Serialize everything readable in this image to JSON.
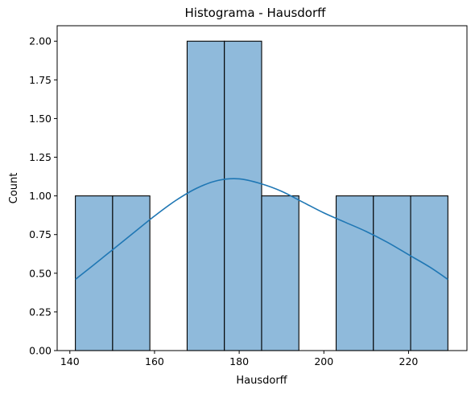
{
  "chart_data": {
    "type": "bar",
    "title": "Histograma - Hausdorff",
    "xlabel": "Hausdorff",
    "ylabel": "Count",
    "xlim": [
      137.0,
      233.8
    ],
    "ylim": [
      0,
      2.1
    ],
    "x_ticks": [
      140,
      160,
      180,
      200,
      220
    ],
    "y_ticks": [
      0.0,
      0.25,
      0.5,
      0.75,
      1.0,
      1.25,
      1.5,
      1.75,
      2.0
    ],
    "y_tick_labels": [
      "0.00",
      "0.25",
      "0.50",
      "0.75",
      "1.00",
      "1.25",
      "1.50",
      "1.75",
      "2.00"
    ],
    "bins": [
      {
        "x0": 141.3,
        "x1": 150.1,
        "count": 1
      },
      {
        "x0": 150.1,
        "x1": 158.9,
        "count": 1
      },
      {
        "x0": 158.9,
        "x1": 167.7,
        "count": 0
      },
      {
        "x0": 167.7,
        "x1": 176.5,
        "count": 2
      },
      {
        "x0": 176.5,
        "x1": 185.3,
        "count": 2
      },
      {
        "x0": 185.3,
        "x1": 194.1,
        "count": 1
      },
      {
        "x0": 194.1,
        "x1": 202.9,
        "count": 0
      },
      {
        "x0": 202.9,
        "x1": 211.7,
        "count": 1
      },
      {
        "x0": 211.7,
        "x1": 220.5,
        "count": 1
      },
      {
        "x0": 220.5,
        "x1": 229.3,
        "count": 1
      }
    ],
    "kde": {
      "x": [
        141.3,
        145,
        150,
        155,
        160,
        165,
        170,
        175,
        180,
        185,
        190,
        195,
        200,
        205,
        210,
        215,
        220,
        225,
        229.3
      ],
      "y": [
        0.46,
        0.54,
        0.65,
        0.76,
        0.87,
        0.97,
        1.05,
        1.1,
        1.11,
        1.08,
        1.03,
        0.96,
        0.89,
        0.83,
        0.77,
        0.7,
        0.62,
        0.54,
        0.46
      ]
    },
    "colors": {
      "bar_fill": "#8fbadb",
      "bar_edge": "#000000",
      "kde_line": "#1f77b4"
    },
    "grid": false,
    "legend": "none"
  }
}
